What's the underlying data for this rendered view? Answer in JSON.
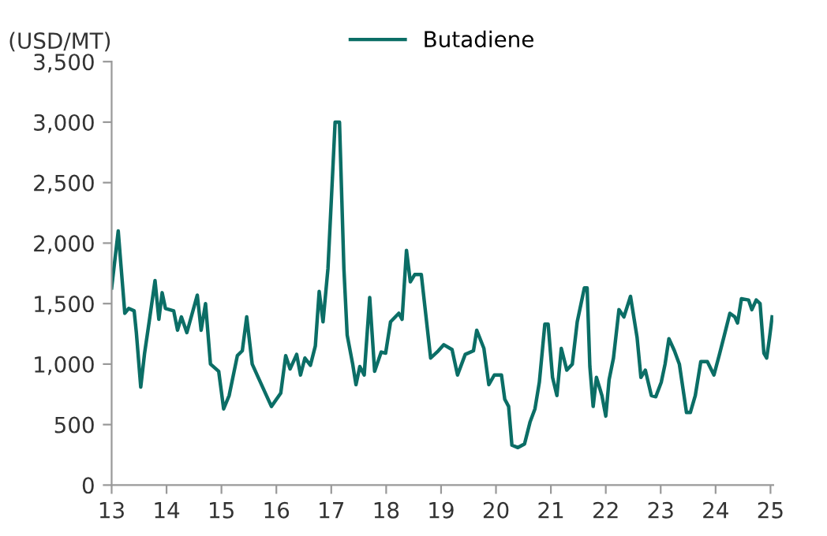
{
  "chart_data": {
    "type": "line",
    "ylabel": "(USD/MT)",
    "xlim": [
      13,
      25.05
    ],
    "xticks": [
      13,
      14,
      15,
      16,
      17,
      18,
      19,
      20,
      21,
      22,
      23,
      24,
      25
    ],
    "ylim": [
      0,
      3500
    ],
    "yticks": [
      0,
      500,
      {
        "value": 1000,
        "label": "1,000"
      },
      {
        "value": 1500,
        "label": "1,500"
      },
      {
        "value": 2000,
        "label": "2,000"
      },
      {
        "value": 2500,
        "label": "2,500"
      },
      {
        "value": 3000,
        "label": "3,000"
      },
      {
        "value": 3500,
        "label": "3,500"
      }
    ],
    "grid": false,
    "legend": "top",
    "marker": "none",
    "line_style": "solid",
    "series": [
      {
        "name": "Butadiene",
        "color": "#0b6e66",
        "x": [
          13.0,
          13.12,
          13.16,
          13.24,
          13.31,
          13.41,
          13.45,
          13.53,
          13.6,
          13.69,
          13.79,
          13.86,
          13.92,
          13.98,
          14.13,
          14.2,
          14.27,
          14.37,
          14.56,
          14.63,
          14.71,
          14.8,
          14.95,
          15.04,
          15.14,
          15.29,
          15.38,
          15.46,
          15.56,
          15.67,
          15.82,
          15.91,
          16.08,
          16.17,
          16.25,
          16.37,
          16.44,
          16.52,
          16.62,
          16.71,
          16.78,
          16.85,
          16.94,
          17.02,
          17.07,
          17.15,
          17.23,
          17.29,
          17.39,
          17.45,
          17.52,
          17.6,
          17.7,
          17.79,
          17.91,
          17.99,
          18.08,
          18.23,
          18.29,
          18.37,
          18.44,
          18.52,
          18.64,
          18.81,
          18.95,
          19.05,
          19.2,
          19.3,
          19.44,
          19.59,
          19.65,
          19.78,
          19.87,
          19.97,
          20.1,
          20.16,
          20.23,
          20.29,
          20.4,
          20.52,
          20.62,
          20.71,
          20.79,
          20.89,
          20.95,
          21.03,
          21.11,
          21.19,
          21.29,
          21.39,
          21.48,
          21.61,
          21.66,
          21.71,
          21.77,
          21.83,
          21.93,
          22.0,
          22.06,
          22.14,
          22.24,
          22.33,
          22.45,
          22.57,
          22.64,
          22.72,
          22.83,
          22.91,
          23.01,
          23.08,
          23.15,
          23.25,
          23.34,
          23.47,
          23.54,
          23.63,
          23.73,
          23.85,
          23.97,
          24.07,
          24.16,
          24.26,
          24.35,
          24.4,
          24.47,
          24.6,
          24.66,
          24.74,
          24.81,
          24.88,
          24.93,
          24.98,
          25.03
        ],
        "values": [
          1630,
          2100,
          1870,
          1420,
          1460,
          1440,
          1260,
          810,
          1090,
          1370,
          1690,
          1370,
          1590,
          1460,
          1440,
          1280,
          1390,
          1260,
          1570,
          1280,
          1500,
          1000,
          940,
          630,
          740,
          1070,
          1110,
          1390,
          1000,
          890,
          740,
          650,
          760,
          1070,
          960,
          1080,
          910,
          1050,
          990,
          1150,
          1600,
          1350,
          1790,
          2530,
          3000,
          3000,
          1790,
          1240,
          1000,
          830,
          980,
          910,
          1550,
          940,
          1100,
          1090,
          1350,
          1420,
          1370,
          1940,
          1680,
          1740,
          1740,
          1050,
          1110,
          1160,
          1120,
          910,
          1080,
          1110,
          1280,
          1130,
          830,
          910,
          910,
          710,
          650,
          330,
          310,
          340,
          520,
          630,
          850,
          1330,
          1330,
          890,
          740,
          1130,
          950,
          1000,
          1350,
          1630,
          1630,
          980,
          650,
          890,
          740,
          570,
          870,
          1050,
          1450,
          1390,
          1560,
          1220,
          890,
          950,
          740,
          730,
          850,
          1000,
          1210,
          1110,
          1000,
          600,
          600,
          740,
          1020,
          1020,
          910,
          1080,
          1240,
          1420,
          1390,
          1340,
          1540,
          1530,
          1450,
          1530,
          1500,
          1090,
          1050,
          1210,
          1390
        ]
      }
    ]
  }
}
